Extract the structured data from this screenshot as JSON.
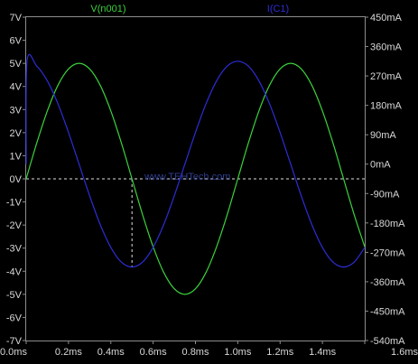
{
  "chart_data": {
    "type": "line",
    "title": "",
    "watermark": "www.TEHTech.com",
    "x": {
      "label": "",
      "range": [
        0.0,
        1.6
      ],
      "ticks": [
        0.0,
        0.2,
        0.4,
        0.6,
        0.8,
        1.0,
        1.2,
        1.4,
        1.6
      ],
      "tick_labels": [
        "0.0ms",
        "0.2ms",
        "0.4ms",
        "0.6ms",
        "0.8ms",
        "1.0ms",
        "1.2ms",
        "1.4ms",
        "1.6ms"
      ]
    },
    "y_left": {
      "label": "",
      "range": [
        -7,
        7
      ],
      "ticks": [
        7,
        6,
        5,
        4,
        3,
        2,
        1,
        0,
        -1,
        -2,
        -3,
        -4,
        -5,
        -6,
        -7
      ],
      "tick_labels": [
        "7V",
        "6V",
        "5V",
        "4V",
        "3V",
        "2V",
        "1V",
        "0V",
        "-1V",
        "-2V",
        "-3V",
        "-4V",
        "-5V",
        "-6V",
        "-7V"
      ]
    },
    "y_right": {
      "label": "",
      "range": [
        -540,
        450
      ],
      "ticks": [
        450,
        360,
        270,
        180,
        90,
        0,
        -90,
        -180,
        -270,
        -360,
        -450,
        -540
      ],
      "tick_labels": [
        "450mA",
        "360mA",
        "270mA",
        "180mA",
        "90mA",
        "0mA",
        "-90mA",
        "-180mA",
        "-270mA",
        "-360mA",
        "-450mA",
        "-540mA"
      ]
    },
    "grid": false,
    "legend_position": "top",
    "series": [
      {
        "name": "V(n001)",
        "axis": "left",
        "color": "#3bd13b",
        "x": [
          0.0,
          0.05,
          0.1,
          0.15,
          0.2,
          0.25,
          0.3,
          0.35,
          0.4,
          0.45,
          0.5,
          0.55,
          0.6,
          0.65,
          0.7,
          0.75,
          0.8,
          0.85,
          0.9,
          0.95,
          1.0,
          1.05,
          1.1,
          1.15,
          1.2,
          1.25,
          1.3,
          1.35,
          1.4,
          1.45,
          1.5,
          1.55,
          1.6
        ],
        "values": [
          0.0,
          1.55,
          2.94,
          4.05,
          4.76,
          5.0,
          4.76,
          4.05,
          2.94,
          1.55,
          0.0,
          -1.55,
          -2.94,
          -4.05,
          -4.76,
          -5.0,
          -4.76,
          -4.05,
          -2.94,
          -1.55,
          0.0,
          1.55,
          2.94,
          4.05,
          4.76,
          5.0,
          4.76,
          4.05,
          2.94,
          1.55,
          0.0,
          -1.55,
          -2.94
        ]
      },
      {
        "name": "I(C1)",
        "axis": "right",
        "color": "#2d2dd6",
        "x": [
          0.0,
          0.004,
          0.05,
          0.1,
          0.15,
          0.2,
          0.25,
          0.3,
          0.35,
          0.4,
          0.45,
          0.5,
          0.55,
          0.6,
          0.65,
          0.7,
          0.75,
          0.8,
          0.85,
          0.9,
          0.95,
          1.0,
          1.05,
          1.1,
          1.15,
          1.2,
          1.25,
          1.3,
          1.35,
          1.4,
          1.45,
          1.5,
          1.55,
          1.6
        ],
        "values": [
          0,
          315,
          300,
          255,
          185,
          97,
          0,
          -97,
          -185,
          -255,
          -300,
          -315,
          -300,
          -255,
          -185,
          -97,
          0,
          97,
          185,
          255,
          300,
          315,
          300,
          255,
          185,
          97,
          0,
          -97,
          -185,
          -255,
          -300,
          -315,
          -300,
          -255
        ]
      }
    ]
  }
}
